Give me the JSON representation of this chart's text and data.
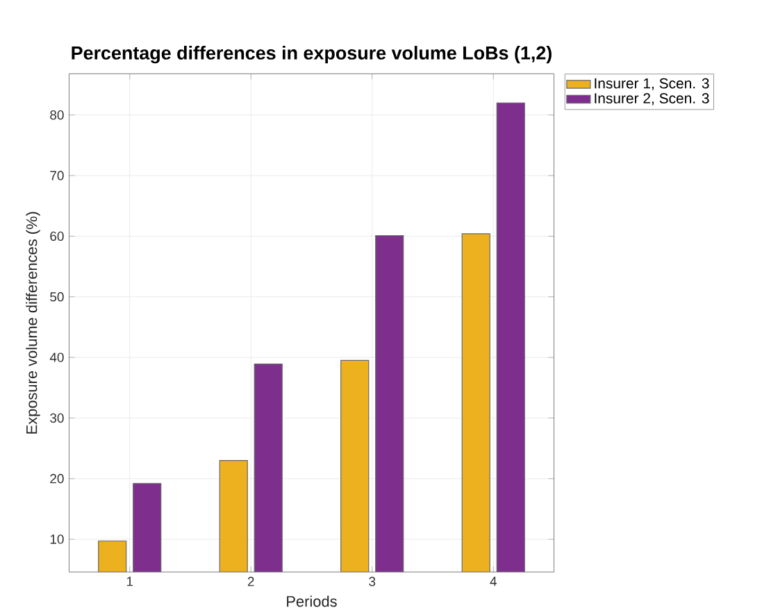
{
  "chart_data": {
    "type": "bar",
    "title": "Percentage differences in exposure volume LoBs (1,2)",
    "xlabel": "Periods",
    "ylabel": "Exposure volume differences (%)",
    "categories": [
      "1",
      "2",
      "3",
      "4"
    ],
    "series": [
      {
        "name": "Insurer 1, Scen. 3",
        "color": "#edb120",
        "values": [
          9.7,
          23.0,
          39.5,
          60.4
        ]
      },
      {
        "name": "Insurer 2, Scen. 3",
        "color": "#7e2f8e",
        "values": [
          19.2,
          38.9,
          60.1,
          82.0
        ]
      }
    ],
    "ylim": [
      4.6,
      86.8
    ],
    "yticks": [
      10,
      20,
      30,
      40,
      50,
      60,
      70,
      80
    ],
    "grid": true,
    "legend": "top right"
  }
}
